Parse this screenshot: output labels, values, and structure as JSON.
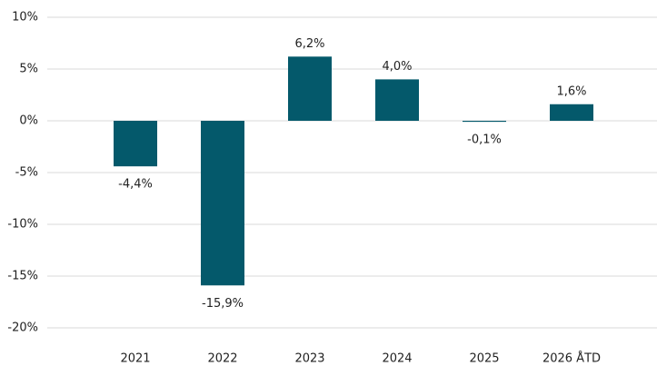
{
  "chart_data": {
    "type": "bar",
    "categories": [
      "2021",
      "2022",
      "2023",
      "2024",
      "2025",
      "2026 ÅTD"
    ],
    "values": [
      -4.4,
      -15.9,
      6.2,
      4.0,
      -0.1,
      1.6
    ],
    "value_labels": [
      "-4,4%",
      "-15,9%",
      "6,2%",
      "4,0%",
      "-0,1%",
      "1,6%"
    ],
    "color": "#04596b",
    "ylim": [
      -20,
      10
    ],
    "yticks": [
      {
        "value": -20,
        "label": "-20%"
      },
      {
        "value": -15,
        "label": "-15%"
      },
      {
        "value": -10,
        "label": "-10%"
      },
      {
        "value": -5,
        "label": "-5%"
      },
      {
        "value": 0,
        "label": "0%"
      },
      {
        "value": 5,
        "label": "5%"
      },
      {
        "value": 10,
        "label": "10%"
      }
    ],
    "grid": true
  }
}
